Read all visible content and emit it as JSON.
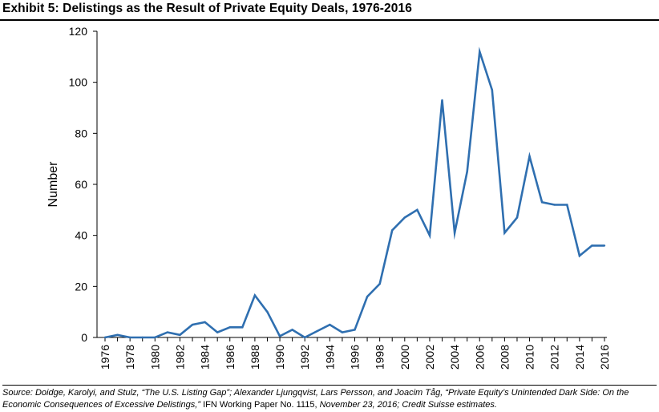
{
  "title": "Exhibit 5: Delistings as the Result of Private Equity Deals, 1976-2016",
  "source": {
    "part1": "Source: Doidge, Karolyi, and Stulz, “The U.S. Listing Gap”; Alexander Ljungqvist, Lars Persson, and Joacim Tåg, “Private Equity’s Unintended Dark Side: On the Economic Consequences of Excessive Delistings,”",
    "part2": " IFN Working Paper No. 1115, ",
    "part3": "November 23, 2016; Credit Suisse estimates."
  },
  "chart_data": {
    "type": "line",
    "title": "",
    "xlabel": "",
    "ylabel": "Number",
    "x": [
      1976,
      1977,
      1978,
      1979,
      1980,
      1981,
      1982,
      1983,
      1984,
      1985,
      1986,
      1987,
      1988,
      1989,
      1990,
      1991,
      1992,
      1993,
      1994,
      1995,
      1996,
      1997,
      1998,
      1999,
      2000,
      2001,
      2002,
      2003,
      2004,
      2005,
      2006,
      2007,
      2008,
      2009,
      2010,
      2011,
      2012,
      2013,
      2014,
      2015,
      2016
    ],
    "series": [
      {
        "name": "",
        "color": "#2f6fb0",
        "values": [
          0,
          1,
          0,
          0,
          0,
          2,
          1,
          5,
          6,
          2,
          4,
          4,
          16.5,
          10,
          0.5,
          3,
          0,
          2.5,
          5,
          2,
          3,
          16,
          21,
          42,
          47,
          50,
          40,
          93,
          41,
          65,
          112,
          97,
          41,
          47,
          71,
          53,
          52,
          52,
          32,
          36,
          36
        ]
      }
    ],
    "ylim": [
      0,
      120
    ],
    "yticks": [
      0,
      20,
      40,
      60,
      80,
      100,
      120
    ],
    "xticks": [
      1976,
      1978,
      1980,
      1982,
      1984,
      1986,
      1988,
      1990,
      1992,
      1994,
      1996,
      1998,
      2000,
      2002,
      2004,
      2006,
      2008,
      2010,
      2012,
      2014,
      2016
    ],
    "grid": false,
    "legend": "none"
  }
}
